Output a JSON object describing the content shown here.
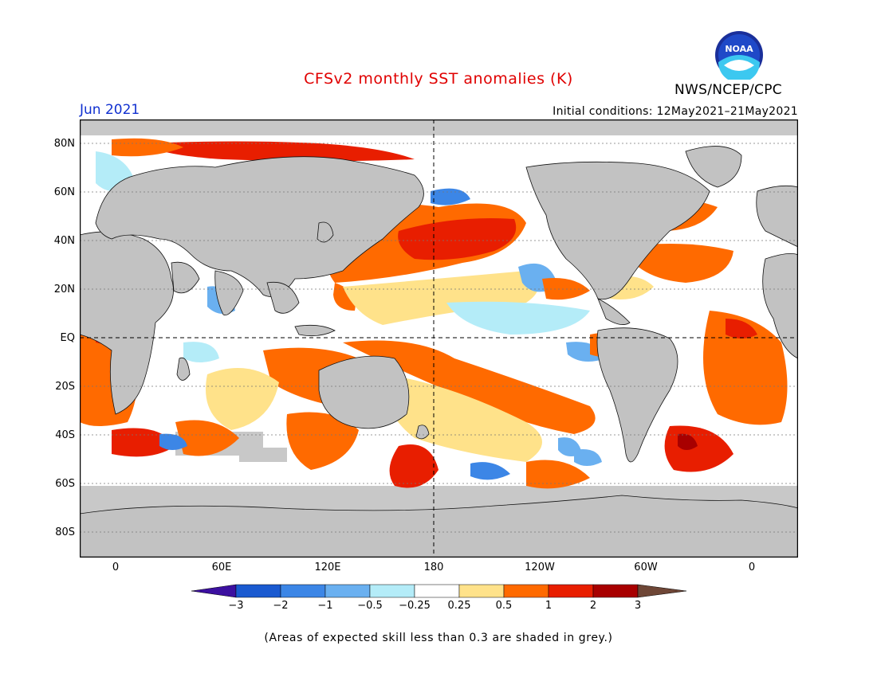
{
  "header": {
    "title": "CFSv2 monthly SST anomalies (K)",
    "agency": "NWS/NCEP/CPC",
    "logo_text": "NOAA",
    "month": "Jun 2021",
    "initial_conditions": "Initial conditions: 12May2021–21May2021"
  },
  "axes": {
    "lat_labels": [
      "80N",
      "60N",
      "40N",
      "20N",
      "EQ",
      "20S",
      "40S",
      "60S",
      "80S"
    ],
    "lon_labels": [
      "0",
      "60E",
      "120E",
      "180",
      "120W",
      "60W",
      "0"
    ]
  },
  "legend": {
    "ticks": [
      "−3",
      "−2",
      "−1",
      "−0.5",
      "−0.25",
      "0.25",
      "0.5",
      "1",
      "2",
      "3"
    ],
    "colors": [
      "#3c10a0",
      "#1a5ad0",
      "#3c86e6",
      "#6ab0f0",
      "#b4ecf8",
      "#ffffff",
      "#ffe28a",
      "#ff6a00",
      "#e81e00",
      "#a80000",
      "#6e4636"
    ]
  },
  "colors": {
    "land": "#c2c2c2",
    "low_skill": "#c8c8c8",
    "neutral": "#ffffff",
    "pos1": "#ffe28a",
    "pos2": "#ff6a00",
    "pos3": "#e81e00",
    "pos4": "#a80000",
    "neg1": "#b4ecf8",
    "neg2": "#6ab0f0",
    "neg3": "#3c86e6",
    "neg4": "#1a5ad0"
  },
  "footnote": "(Areas of expected skill less than 0.3 are shaded in grey.)"
}
